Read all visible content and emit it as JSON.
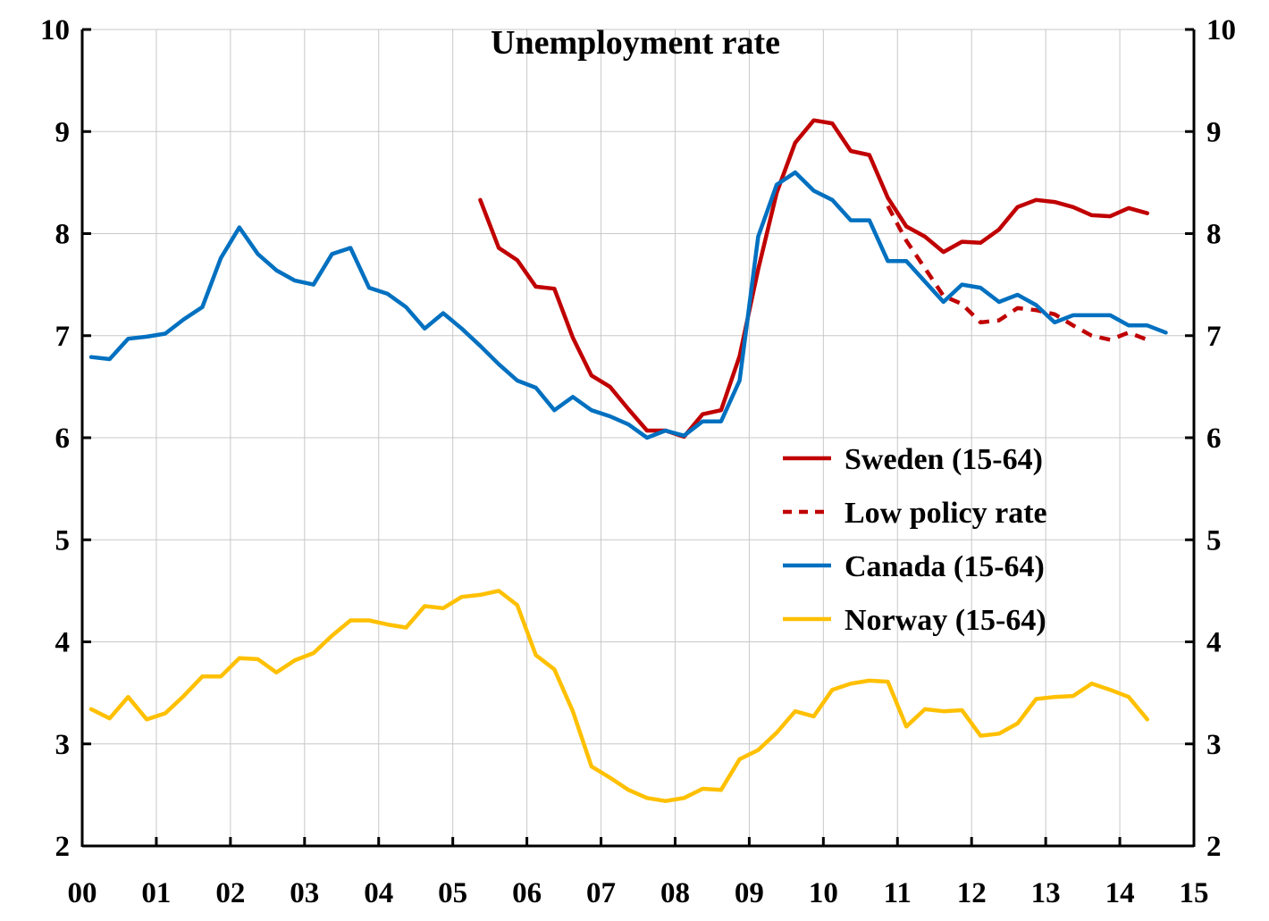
{
  "chart_data": {
    "type": "line",
    "title": "Unemployment rate",
    "xlabel": "",
    "ylabel": "",
    "xlim": [
      2000.0,
      2015.0
    ],
    "ylim": [
      2,
      10
    ],
    "yticks": [
      2,
      3,
      4,
      5,
      6,
      7,
      8,
      9,
      10
    ],
    "xtick_labels": [
      "00",
      "01",
      "02",
      "03",
      "04",
      "05",
      "06",
      "07",
      "08",
      "09",
      "10",
      "11",
      "12",
      "13",
      "14",
      "15"
    ],
    "grid": true,
    "legend": "center-right",
    "series": [
      {
        "name": "Sweden (15-64)",
        "color": "#c00000",
        "dash": "solid",
        "x": [
          2005.37,
          2005.62,
          2005.87,
          2006.12,
          2006.37,
          2006.62,
          2006.87,
          2007.12,
          2007.37,
          2007.62,
          2007.87,
          2008.12,
          2008.37,
          2008.62,
          2008.87,
          2009.12,
          2009.37,
          2009.62,
          2009.87,
          2010.12,
          2010.37,
          2010.62,
          2010.87,
          2011.12,
          2011.37,
          2011.62,
          2011.87,
          2012.12,
          2012.37,
          2012.62,
          2012.87,
          2013.12,
          2013.37,
          2013.62,
          2013.87,
          2014.12,
          2014.37
        ],
        "y": [
          8.33,
          7.86,
          7.74,
          7.48,
          7.46,
          6.98,
          6.61,
          6.5,
          6.28,
          6.07,
          6.07,
          6.01,
          6.23,
          6.27,
          6.8,
          7.65,
          8.4,
          8.89,
          9.11,
          9.08,
          8.81,
          8.77,
          8.35,
          8.07,
          7.97,
          7.82,
          7.92,
          7.91,
          8.04,
          8.26,
          8.33,
          8.31,
          8.26,
          8.18,
          8.17,
          8.25,
          8.2
        ]
      },
      {
        "name": "Low policy rate",
        "color": "#c00000",
        "dash": "dashed",
        "x": [
          2010.87,
          2011.12,
          2011.37,
          2011.62,
          2011.87,
          2012.12,
          2012.37,
          2012.62,
          2012.87,
          2013.12,
          2013.37,
          2013.62,
          2013.87,
          2014.12,
          2014.37
        ],
        "y": [
          8.27,
          7.93,
          7.66,
          7.39,
          7.31,
          7.13,
          7.15,
          7.27,
          7.25,
          7.21,
          7.1,
          7.0,
          6.96,
          7.03,
          6.96
        ]
      },
      {
        "name": "Canada (15-64)",
        "color": "#0070c0",
        "dash": "solid",
        "x": [
          2000.12,
          2000.37,
          2000.62,
          2000.87,
          2001.12,
          2001.37,
          2001.62,
          2001.87,
          2002.12,
          2002.37,
          2002.62,
          2002.87,
          2003.12,
          2003.37,
          2003.62,
          2003.87,
          2004.12,
          2004.37,
          2004.62,
          2004.87,
          2005.12,
          2005.37,
          2005.62,
          2005.87,
          2006.12,
          2006.37,
          2006.62,
          2006.87,
          2007.12,
          2007.37,
          2007.62,
          2007.87,
          2008.12,
          2008.37,
          2008.62,
          2008.87,
          2009.12,
          2009.37,
          2009.62,
          2009.87,
          2010.12,
          2010.37,
          2010.62,
          2010.87,
          2011.12,
          2011.37,
          2011.62,
          2011.87,
          2012.12,
          2012.37,
          2012.62,
          2012.87,
          2013.12,
          2013.37,
          2013.62,
          2013.87,
          2014.12,
          2014.37,
          2014.62
        ],
        "y": [
          6.79,
          6.77,
          6.97,
          6.99,
          7.02,
          7.16,
          7.28,
          7.76,
          8.06,
          7.8,
          7.64,
          7.54,
          7.5,
          7.8,
          7.86,
          7.47,
          7.41,
          7.28,
          7.07,
          7.22,
          7.07,
          6.9,
          6.72,
          6.56,
          6.49,
          6.27,
          6.4,
          6.27,
          6.21,
          6.13,
          6.0,
          6.07,
          6.02,
          6.16,
          6.16,
          6.56,
          7.97,
          8.48,
          8.6,
          8.42,
          8.33,
          8.13,
          8.13,
          7.73,
          7.73,
          7.53,
          7.33,
          7.5,
          7.47,
          7.33,
          7.4,
          7.3,
          7.13,
          7.2,
          7.2,
          7.2,
          7.1,
          7.1,
          7.03
        ]
      },
      {
        "name": "Norway (15-64)",
        "color": "#ffc000",
        "dash": "solid",
        "x": [
          2000.12,
          2000.37,
          2000.62,
          2000.87,
          2001.12,
          2001.37,
          2001.62,
          2001.87,
          2002.12,
          2002.37,
          2002.62,
          2002.87,
          2003.12,
          2003.37,
          2003.62,
          2003.87,
          2004.12,
          2004.37,
          2004.62,
          2004.87,
          2005.12,
          2005.37,
          2005.62,
          2005.87,
          2006.12,
          2006.37,
          2006.62,
          2006.87,
          2007.12,
          2007.37,
          2007.62,
          2007.87,
          2008.12,
          2008.37,
          2008.62,
          2008.87,
          2009.12,
          2009.37,
          2009.62,
          2009.87,
          2010.12,
          2010.37,
          2010.62,
          2010.87,
          2011.12,
          2011.37,
          2011.62,
          2011.87,
          2012.12,
          2012.37,
          2012.62,
          2012.87,
          2013.12,
          2013.37,
          2013.62,
          2013.87,
          2014.12,
          2014.37
        ],
        "y": [
          3.34,
          3.25,
          3.46,
          3.24,
          3.3,
          3.47,
          3.66,
          3.66,
          3.84,
          3.83,
          3.7,
          3.82,
          3.89,
          4.06,
          4.21,
          4.21,
          4.17,
          4.14,
          4.35,
          4.33,
          4.44,
          4.46,
          4.5,
          4.36,
          3.87,
          3.73,
          3.32,
          2.78,
          2.67,
          2.55,
          2.47,
          2.44,
          2.47,
          2.56,
          2.55,
          2.85,
          2.94,
          3.11,
          3.32,
          3.27,
          3.53,
          3.59,
          3.62,
          3.61,
          3.17,
          3.34,
          3.32,
          3.33,
          3.08,
          3.1,
          3.2,
          3.44,
          3.46,
          3.47,
          3.59,
          3.53,
          3.46,
          3.24
        ]
      }
    ]
  }
}
